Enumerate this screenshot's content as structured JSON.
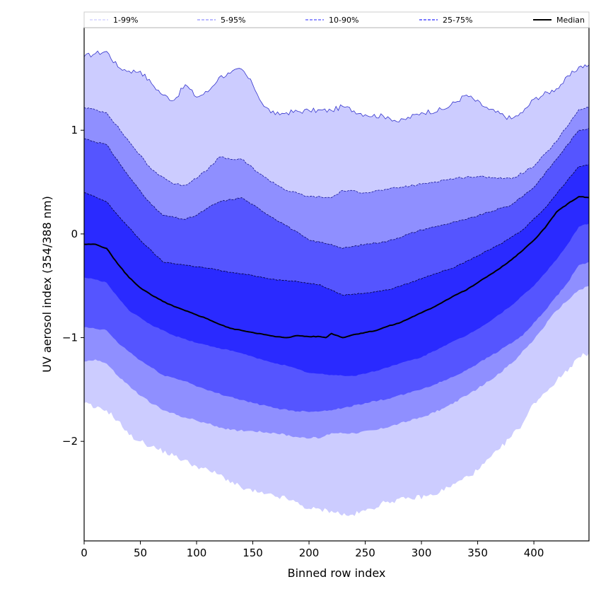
{
  "chart_data": {
    "type": "area",
    "title": "",
    "xlabel": "Binned row index",
    "ylabel": "UV aerosol index (354/388 nm)",
    "xlim": [
      0,
      449
    ],
    "ylim": [
      -2.96,
      1.99
    ],
    "xticks": [
      0,
      50,
      100,
      150,
      200,
      250,
      300,
      350,
      400
    ],
    "xtick_labels": [
      "0",
      "50",
      "100",
      "150",
      "200",
      "250",
      "300",
      "350",
      "400"
    ],
    "yticks": [
      1,
      0,
      -1,
      -2
    ],
    "ytick_labels": [
      "1",
      "0",
      "−1",
      "−2"
    ],
    "grid": false,
    "legend_position": "top",
    "legend": [
      {
        "label": "1-99%",
        "color": "#ccccff",
        "style": "dashed"
      },
      {
        "label": "5-95%",
        "color": "#8f8fff",
        "style": "dashed"
      },
      {
        "label": "10-90%",
        "color": "#5555ff",
        "style": "dashed"
      },
      {
        "label": "25-75%",
        "color": "#2a2aff",
        "style": "dashed"
      },
      {
        "label": "Median",
        "color": "#000000",
        "style": "solid"
      }
    ],
    "bands": [
      {
        "name": "1-99%",
        "color": "#ccccff",
        "edge_color": "#3333cc",
        "upper": {
          "x": [
            0,
            10,
            20,
            30,
            40,
            50,
            60,
            70,
            80,
            90,
            100,
            110,
            120,
            130,
            140,
            150,
            160,
            170,
            180,
            200,
            220,
            230,
            250,
            270,
            280,
            300,
            320,
            340,
            360,
            380,
            390,
            400,
            420,
            440,
            449
          ],
          "y": [
            1.71,
            1.74,
            1.76,
            1.61,
            1.57,
            1.57,
            1.45,
            1.34,
            1.29,
            1.44,
            1.32,
            1.37,
            1.51,
            1.55,
            1.59,
            1.44,
            1.23,
            1.15,
            1.17,
            1.19,
            1.19,
            1.23,
            1.15,
            1.13,
            1.08,
            1.17,
            1.2,
            1.34,
            1.2,
            1.11,
            1.17,
            1.3,
            1.4,
            1.61,
            1.63
          ]
        },
        "lower": {
          "x": [
            0,
            10,
            20,
            30,
            40,
            50,
            60,
            80,
            100,
            120,
            140,
            160,
            180,
            200,
            220,
            235,
            250,
            270,
            290,
            310,
            330,
            350,
            370,
            390,
            400,
            420,
            440,
            449
          ],
          "y": [
            -1.63,
            -1.68,
            -1.7,
            -1.8,
            -1.94,
            -2.0,
            -2.05,
            -2.14,
            -2.24,
            -2.32,
            -2.45,
            -2.51,
            -2.55,
            -2.65,
            -2.67,
            -2.72,
            -2.67,
            -2.58,
            -2.55,
            -2.52,
            -2.41,
            -2.28,
            -2.07,
            -1.83,
            -1.63,
            -1.42,
            -1.19,
            -1.15
          ]
        }
      },
      {
        "name": "5-95%",
        "color": "#8f8fff",
        "edge_color": "#1a1a99",
        "upper": {
          "x": [
            0,
            20,
            40,
            60,
            80,
            90,
            110,
            120,
            130,
            140,
            160,
            180,
            200,
            220,
            230,
            250,
            270,
            300,
            320,
            340,
            360,
            380,
            400,
            420,
            440,
            449
          ],
          "y": [
            1.22,
            1.17,
            0.89,
            0.62,
            0.48,
            0.47,
            0.62,
            0.74,
            0.72,
            0.72,
            0.55,
            0.42,
            0.36,
            0.35,
            0.42,
            0.4,
            0.43,
            0.48,
            0.52,
            0.55,
            0.55,
            0.53,
            0.65,
            0.89,
            1.2,
            1.22
          ]
        },
        "lower": {
          "x": [
            0,
            10,
            20,
            30,
            50,
            70,
            90,
            110,
            130,
            150,
            170,
            190,
            210,
            220,
            240,
            260,
            280,
            300,
            320,
            340,
            360,
            380,
            400,
            420,
            440,
            449
          ],
          "y": [
            -1.23,
            -1.21,
            -1.25,
            -1.37,
            -1.56,
            -1.7,
            -1.77,
            -1.83,
            -1.89,
            -1.9,
            -1.92,
            -1.96,
            -1.97,
            -1.92,
            -1.92,
            -1.89,
            -1.83,
            -1.77,
            -1.68,
            -1.56,
            -1.42,
            -1.25,
            -1.02,
            -0.74,
            -0.54,
            -0.5
          ]
        }
      },
      {
        "name": "10-90%",
        "color": "#5555ff",
        "edge_color": "#0d0d66",
        "upper": {
          "x": [
            0,
            20,
            40,
            60,
            70,
            90,
            100,
            110,
            120,
            140,
            160,
            180,
            200,
            220,
            230,
            250,
            270,
            300,
            320,
            340,
            360,
            380,
            400,
            420,
            440,
            449
          ],
          "y": [
            0.92,
            0.86,
            0.55,
            0.28,
            0.18,
            0.14,
            0.18,
            0.25,
            0.31,
            0.35,
            0.21,
            0.08,
            -0.06,
            -0.1,
            -0.14,
            -0.1,
            -0.07,
            0.04,
            0.09,
            0.14,
            0.21,
            0.28,
            0.45,
            0.72,
            1.0,
            1.02
          ]
        },
        "lower": {
          "x": [
            0,
            20,
            30,
            50,
            70,
            90,
            110,
            130,
            150,
            170,
            190,
            210,
            230,
            250,
            270,
            290,
            310,
            330,
            350,
            370,
            390,
            410,
            430,
            440,
            449
          ],
          "y": [
            -0.9,
            -0.93,
            -1.05,
            -1.22,
            -1.36,
            -1.42,
            -1.51,
            -1.57,
            -1.63,
            -1.68,
            -1.71,
            -1.71,
            -1.68,
            -1.63,
            -1.59,
            -1.53,
            -1.46,
            -1.37,
            -1.25,
            -1.12,
            -0.98,
            -0.74,
            -0.47,
            -0.3,
            -0.27
          ]
        }
      },
      {
        "name": "25-75%",
        "color": "#2a2aff",
        "edge_color": "#000033",
        "upper": {
          "x": [
            0,
            20,
            30,
            50,
            70,
            90,
            110,
            130,
            150,
            170,
            190,
            210,
            220,
            230,
            250,
            270,
            290,
            310,
            330,
            350,
            370,
            390,
            410,
            430,
            440,
            449
          ],
          "y": [
            0.4,
            0.31,
            0.18,
            -0.06,
            -0.27,
            -0.3,
            -0.33,
            -0.37,
            -0.4,
            -0.44,
            -0.46,
            -0.49,
            -0.54,
            -0.59,
            -0.57,
            -0.54,
            -0.47,
            -0.39,
            -0.32,
            -0.21,
            -0.1,
            0.04,
            0.25,
            0.52,
            0.65,
            0.67
          ]
        },
        "lower": {
          "x": [
            0,
            10,
            20,
            30,
            40,
            60,
            80,
            100,
            120,
            140,
            160,
            180,
            200,
            220,
            240,
            260,
            280,
            300,
            320,
            340,
            360,
            380,
            400,
            420,
            430,
            440,
            449
          ],
          "y": [
            -0.42,
            -0.44,
            -0.47,
            -0.61,
            -0.74,
            -0.88,
            -0.98,
            -1.05,
            -1.1,
            -1.15,
            -1.22,
            -1.27,
            -1.34,
            -1.36,
            -1.37,
            -1.32,
            -1.25,
            -1.19,
            -1.08,
            -0.98,
            -0.85,
            -0.69,
            -0.5,
            -0.25,
            -0.1,
            0.07,
            0.1
          ]
        }
      }
    ],
    "median": {
      "name": "Median",
      "color": "#000000",
      "x": [
        0,
        10,
        20,
        30,
        40,
        50,
        60,
        70,
        80,
        90,
        100,
        110,
        120,
        130,
        140,
        150,
        160,
        170,
        180,
        190,
        200,
        210,
        215,
        220,
        230,
        240,
        250,
        260,
        270,
        280,
        290,
        300,
        310,
        320,
        330,
        340,
        350,
        360,
        370,
        380,
        390,
        400,
        410,
        420,
        430,
        440,
        449
      ],
      "y": [
        -0.1,
        -0.1,
        -0.14,
        -0.29,
        -0.42,
        -0.52,
        -0.59,
        -0.65,
        -0.7,
        -0.74,
        -0.78,
        -0.82,
        -0.87,
        -0.91,
        -0.93,
        -0.95,
        -0.97,
        -0.99,
        -1.0,
        -0.98,
        -0.99,
        -0.99,
        -1.0,
        -0.96,
        -1.0,
        -0.97,
        -0.95,
        -0.93,
        -0.89,
        -0.86,
        -0.81,
        -0.76,
        -0.71,
        -0.65,
        -0.59,
        -0.54,
        -0.47,
        -0.4,
        -0.33,
        -0.25,
        -0.16,
        -0.06,
        0.06,
        0.21,
        0.29,
        0.36,
        0.35
      ]
    }
  }
}
